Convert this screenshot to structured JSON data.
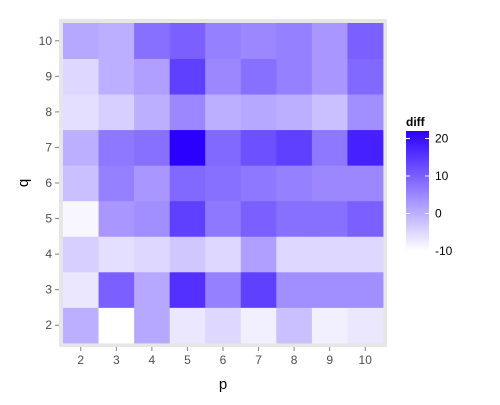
{
  "chart_data": {
    "type": "heatmap",
    "title": "",
    "xlabel": "p",
    "ylabel": "q",
    "x": [
      "2",
      "3",
      "4",
      "5",
      "6",
      "7",
      "8",
      "9",
      "10"
    ],
    "y": [
      "2",
      "3",
      "4",
      "5",
      "6",
      "7",
      "8",
      "9",
      "10"
    ],
    "values": [
      [
        0,
        -10,
        1,
        -7,
        -5,
        -8,
        -2,
        -8,
        -7
      ],
      [
        -7,
        10,
        1,
        16,
        6,
        14,
        4,
        4,
        4
      ],
      [
        -4,
        -6,
        -5,
        -3,
        -5,
        2,
        -5,
        -5,
        -5
      ],
      [
        -9,
        3,
        4,
        14,
        7,
        10,
        8,
        8,
        10
      ],
      [
        -2,
        6,
        3,
        9,
        8,
        7,
        6,
        5,
        5
      ],
      [
        0,
        7,
        8,
        22,
        9,
        12,
        14,
        7,
        18
      ],
      [
        -6,
        -4,
        0,
        5,
        0,
        1,
        0,
        -2,
        4
      ],
      [
        -5,
        0,
        2,
        14,
        5,
        8,
        6,
        3,
        9
      ],
      [
        1,
        0,
        8,
        10,
        6,
        5,
        6,
        3,
        10
      ]
    ],
    "colorscale": {
      "low": "#ffffff",
      "high": "#2b00ff"
    },
    "range": [
      -10,
      22
    ],
    "legend": {
      "title": "diff",
      "ticks": [
        -10,
        0,
        10,
        20
      ],
      "position": "right"
    },
    "panel_background": "#e6e6e6",
    "grid": false
  }
}
